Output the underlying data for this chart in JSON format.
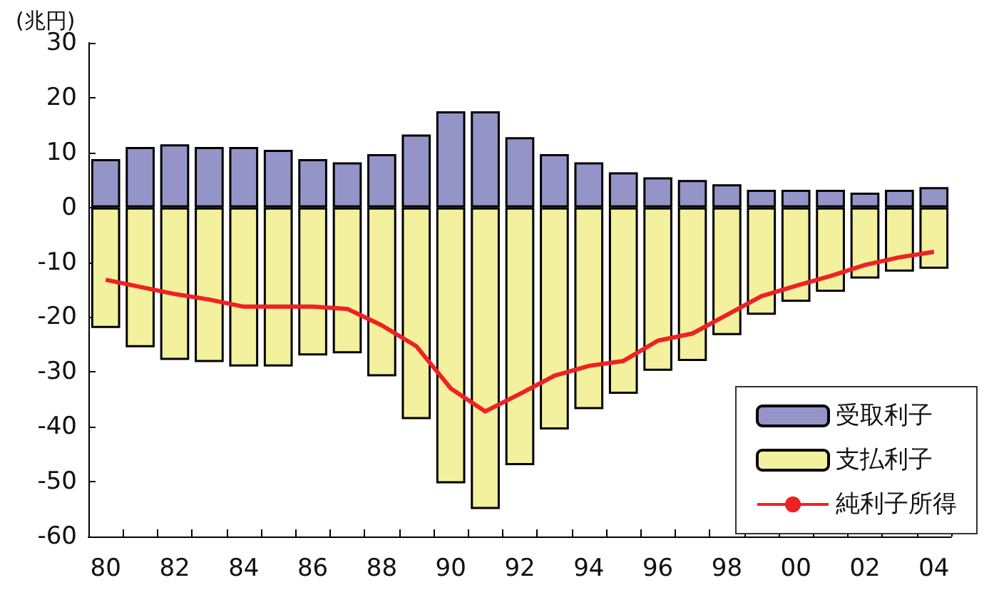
{
  "chart_data": {
    "type": "bar",
    "ylabel": "(兆円)",
    "stacked": true,
    "categories": [
      "80",
      null,
      "82",
      null,
      "84",
      null,
      "86",
      null,
      "88",
      null,
      "90",
      null,
      "92",
      null,
      "94",
      null,
      "96",
      null,
      "98",
      null,
      "00",
      null,
      "02",
      null,
      "04"
    ],
    "series": [
      {
        "name": "受取利子",
        "color": "#9494c8",
        "values": [
          8.8,
          11,
          11.5,
          11,
          11,
          10.5,
          8.8,
          8.2,
          9.7,
          13.3,
          17.5,
          17.5,
          12.8,
          9.7,
          8.2,
          6.4,
          5.5,
          5,
          4.2,
          3.2,
          3.2,
          3.2,
          2.7,
          3.2,
          3.7
        ]
      },
      {
        "name": "支払利子",
        "color": "#f3f09e",
        "values": [
          -22,
          -25.5,
          -27.8,
          -28.2,
          -29,
          -29,
          -27,
          -26.6,
          -30.8,
          -38.6,
          -50.3,
          -55,
          -47,
          -40.5,
          -36.8,
          -34,
          -29.8,
          -28,
          -23.3,
          -19.6,
          -17.2,
          -15.4,
          -13,
          -11.7,
          -11.2
        ]
      },
      {
        "name": "純利子所得",
        "type": "line",
        "color": "#ee2222",
        "values": [
          -13.2,
          -14.5,
          -15.8,
          -16.8,
          -18.1,
          -18.1,
          -18.1,
          -18.5,
          -21.5,
          -25.3,
          -33,
          -37.2,
          -34,
          -30.7,
          -28.9,
          -28,
          -24.3,
          -23,
          -19.6,
          -16.2,
          -14.3,
          -12.5,
          -10.5,
          -9.1,
          -8.1
        ]
      }
    ],
    "ylim": [
      -60,
      30
    ],
    "yticks": [
      -60,
      -50,
      -40,
      -30,
      -20,
      -10,
      0,
      10,
      20,
      30
    ],
    "grid": false,
    "legend": "bottom right",
    "marker": "none",
    "line_style": "solid"
  }
}
